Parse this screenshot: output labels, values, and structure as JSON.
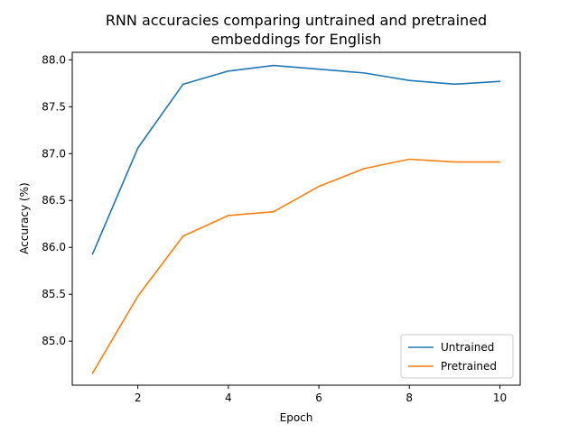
{
  "chart_data": {
    "type": "line",
    "title": [
      "RNN accuracies comparing untrained and pretrained",
      "embeddings for English"
    ],
    "xlabel": "Epoch",
    "ylabel": "Accuracy (%)",
    "xlim": [
      0.55,
      10.45
    ],
    "ylim": [
      84.53,
      88.08
    ],
    "xticks": [
      2,
      4,
      6,
      8,
      10
    ],
    "yticks": [
      85.0,
      85.5,
      86.0,
      86.5,
      87.0,
      87.5,
      88.0
    ],
    "ytick_labels": [
      "85.0",
      "85.5",
      "86.0",
      "86.5",
      "87.0",
      "87.5",
      "88.0"
    ],
    "grid": false,
    "legend_position": "lower-right",
    "x": [
      1,
      2,
      3,
      4,
      5,
      6,
      7,
      8,
      9,
      10
    ],
    "series": [
      {
        "name": "Untrained",
        "color": "#1f77b4",
        "values": [
          85.93,
          87.06,
          87.74,
          87.88,
          87.94,
          87.9,
          87.86,
          87.78,
          87.74,
          87.77
        ]
      },
      {
        "name": "Pretrained",
        "color": "#ff7f0e",
        "values": [
          84.66,
          85.48,
          86.12,
          86.34,
          86.38,
          86.65,
          86.84,
          86.94,
          86.91,
          86.91
        ]
      }
    ]
  }
}
